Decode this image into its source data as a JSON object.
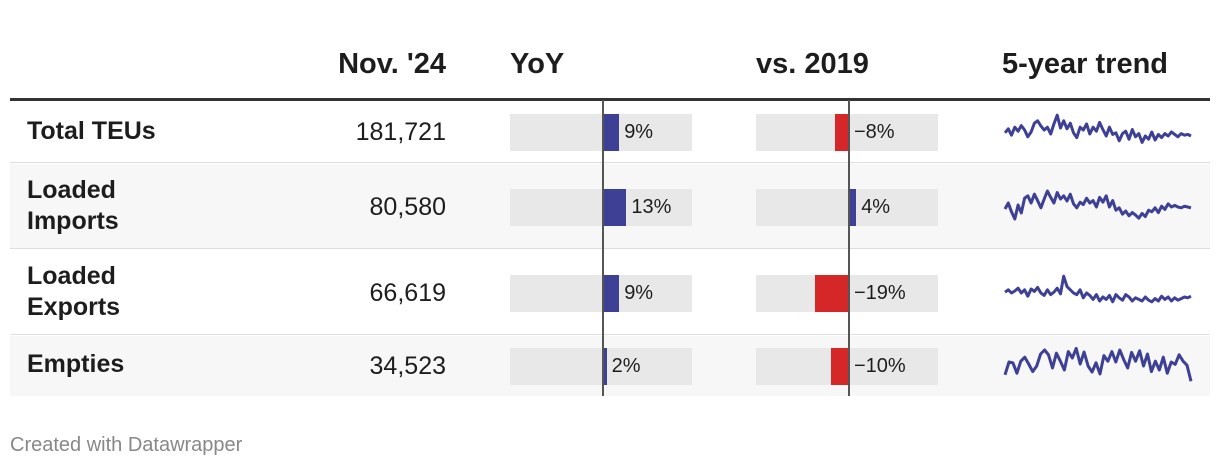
{
  "header": {
    "col_value": "Nov. '24",
    "col_yoy": "YoY",
    "col_vs2019": "vs. 2019",
    "col_trend": "5-year trend"
  },
  "colors": {
    "positive": "#3e4095",
    "negative": "#d62728",
    "track": "#e8e8e8"
  },
  "rows": [
    {
      "label": "Total TEUs",
      "value": "181,721",
      "yoy_label": "9%",
      "vs2019_label": "−8%"
    },
    {
      "label": "Loaded Imports",
      "value": "80,580",
      "yoy_label": "13%",
      "vs2019_label": "4%"
    },
    {
      "label": "Loaded Exports",
      "value": "66,619",
      "yoy_label": "9%",
      "vs2019_label": "−19%"
    },
    {
      "label": "Empties",
      "value": "34,523",
      "yoy_label": "2%",
      "vs2019_label": "−10%"
    }
  ],
  "chart_data": {
    "type": "table",
    "columns": [
      "Nov. '24",
      "YoY",
      "vs. 2019",
      "5-year trend"
    ],
    "rows": [
      {
        "label": "Total TEUs",
        "value": 181721,
        "yoy": 9,
        "vs2019": -8,
        "trend": [
          0.48,
          0.58,
          0.42,
          0.62,
          0.52,
          0.66,
          0.55,
          0.38,
          0.5,
          0.72,
          0.78,
          0.65,
          0.55,
          0.62,
          0.45,
          0.7,
          0.92,
          0.6,
          0.78,
          0.58,
          0.72,
          0.48,
          0.36,
          0.62,
          0.55,
          0.7,
          0.45,
          0.62,
          0.52,
          0.74,
          0.56,
          0.4,
          0.62,
          0.44,
          0.48,
          0.28,
          0.46,
          0.52,
          0.32,
          0.56,
          0.38,
          0.46,
          0.24,
          0.4,
          0.32,
          0.5,
          0.3,
          0.44,
          0.36,
          0.46,
          0.4,
          0.5,
          0.44,
          0.38,
          0.46,
          0.42,
          0.44,
          0.4
        ]
      },
      {
        "label": "Loaded Imports",
        "value": 80580,
        "yoy": 13,
        "vs2019": 4,
        "trend": [
          0.45,
          0.6,
          0.38,
          0.2,
          0.55,
          0.35,
          0.72,
          0.78,
          0.6,
          0.82,
          0.66,
          0.48,
          0.7,
          0.9,
          0.74,
          0.6,
          0.86,
          0.7,
          0.78,
          0.65,
          0.82,
          0.58,
          0.48,
          0.62,
          0.56,
          0.72,
          0.6,
          0.66,
          0.5,
          0.74,
          0.62,
          0.78,
          0.5,
          0.66,
          0.42,
          0.48,
          0.32,
          0.4,
          0.28,
          0.36,
          0.3,
          0.22,
          0.34,
          0.26,
          0.42,
          0.38,
          0.48,
          0.36,
          0.52,
          0.44,
          0.58,
          0.5,
          0.54,
          0.5,
          0.48,
          0.52,
          0.5,
          0.48
        ]
      },
      {
        "label": "Loaded Exports",
        "value": 66619,
        "yoy": 9,
        "vs2019": -19,
        "trend": [
          0.52,
          0.58,
          0.5,
          0.55,
          0.62,
          0.5,
          0.58,
          0.42,
          0.6,
          0.54,
          0.64,
          0.5,
          0.44,
          0.58,
          0.46,
          0.52,
          0.62,
          0.48,
          0.92,
          0.66,
          0.58,
          0.5,
          0.46,
          0.58,
          0.38,
          0.5,
          0.44,
          0.34,
          0.46,
          0.3,
          0.4,
          0.34,
          0.44,
          0.28,
          0.46,
          0.38,
          0.32,
          0.46,
          0.4,
          0.3,
          0.38,
          0.34,
          0.3,
          0.4,
          0.32,
          0.28,
          0.36,
          0.3,
          0.42,
          0.34,
          0.4,
          0.3,
          0.38,
          0.32,
          0.36,
          0.4,
          0.38,
          0.42
        ]
      },
      {
        "label": "Empties",
        "value": 34523,
        "yoy": 2,
        "vs2019": -10,
        "trend": [
          0.28,
          0.6,
          0.58,
          0.32,
          0.62,
          0.72,
          0.55,
          0.36,
          0.5,
          0.8,
          0.9,
          0.78,
          0.45,
          0.82,
          0.62,
          0.4,
          0.86,
          0.7,
          0.94,
          0.55,
          0.85,
          0.5,
          0.35,
          0.58,
          0.3,
          0.76,
          0.62,
          0.86,
          0.6,
          0.9,
          0.66,
          0.45,
          0.84,
          0.62,
          0.88,
          0.5,
          0.8,
          0.36,
          0.62,
          0.4,
          0.72,
          0.32,
          0.6,
          0.54,
          0.78,
          0.62,
          0.52,
          0.12
        ]
      }
    ]
  },
  "footer": {
    "credit": "Created with Datawrapper"
  }
}
